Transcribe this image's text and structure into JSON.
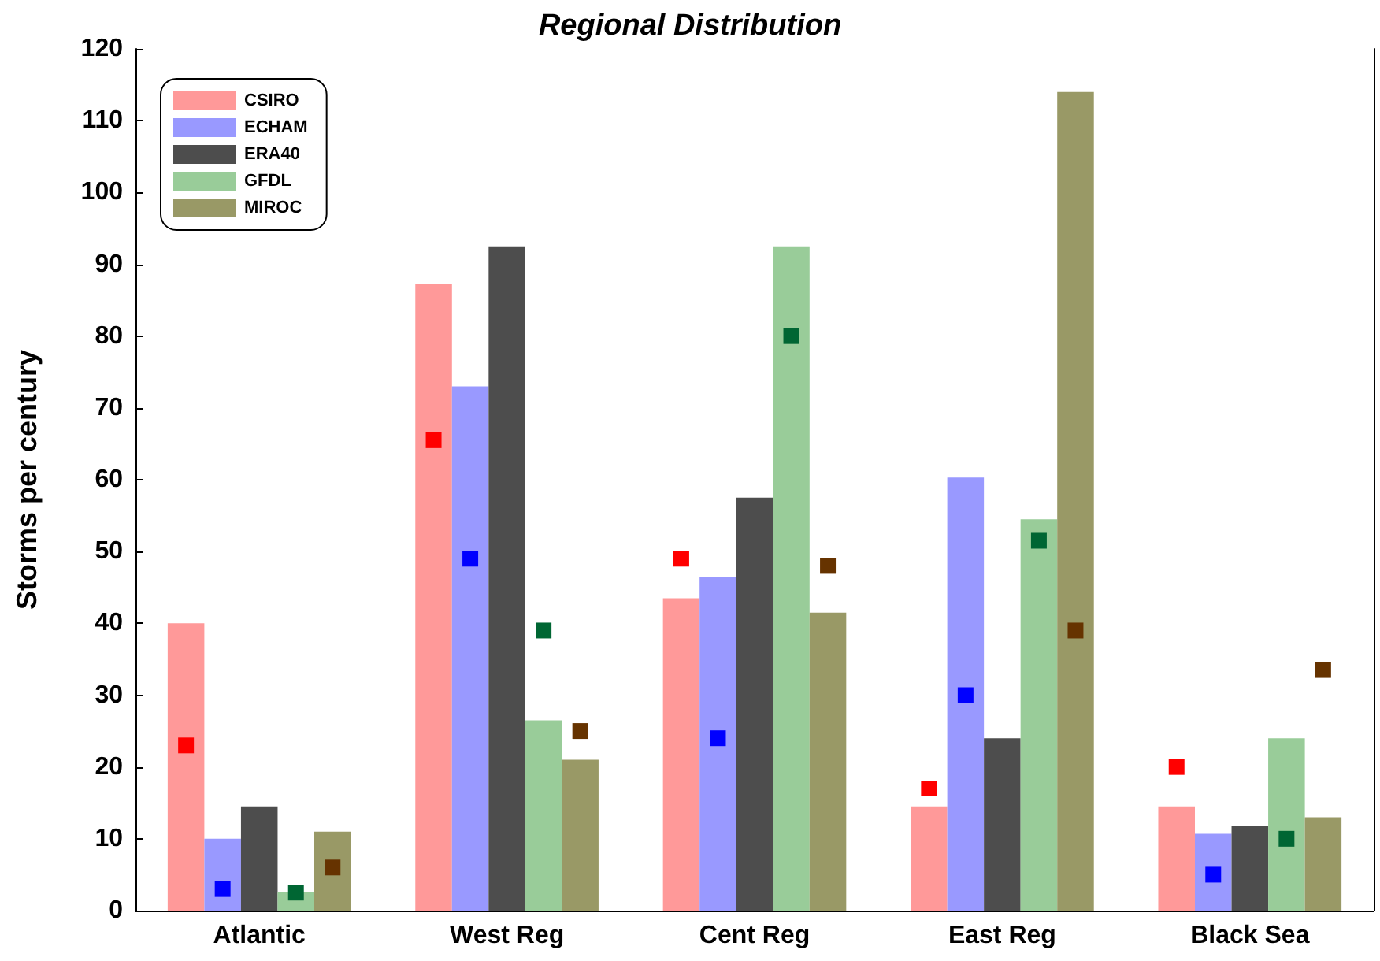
{
  "chart_data": {
    "type": "bar",
    "title": "Regional Distribution",
    "ylabel": "Storms per century",
    "categories": [
      "Atlantic",
      "West Reg",
      "Cent Reg",
      "East Reg",
      "Black Sea"
    ],
    "series": [
      {
        "name": "CSIRO",
        "color": "#ff9999",
        "values": [
          40,
          87.2,
          43.5,
          14.5,
          14.5
        ]
      },
      {
        "type": "scatter",
        "color": "#ff0000",
        "values": [
          23,
          65.5,
          49,
          17,
          20
        ]
      },
      {
        "name": "ECHAM",
        "color": "#9999ff",
        "values": [
          10,
          73,
          46.5,
          60.3,
          10.7
        ]
      },
      {
        "type": "scatter",
        "color": "#0000ff",
        "values": [
          3,
          49,
          24,
          30,
          5
        ]
      },
      {
        "name": "ERA40",
        "color": "#4d4d4d",
        "values": [
          14.5,
          92.5,
          57.5,
          24,
          11.8
        ]
      },
      {
        "name": "GFDL",
        "color": "#99cc99",
        "values": [
          2.6,
          26.5,
          92.5,
          54.5,
          24
        ]
      },
      {
        "type": "scatter",
        "color": "#006633",
        "values": [
          2.5,
          39,
          80,
          51.5,
          10
        ]
      },
      {
        "name": "MIROC",
        "color": "#999966",
        "values": [
          11,
          21,
          41.5,
          114,
          13
        ]
      },
      {
        "type": "scatter",
        "color": "#663300",
        "values": [
          6,
          25,
          48,
          39,
          33.5
        ]
      }
    ],
    "ylim": [
      0,
      120
    ],
    "yticks": [
      0,
      10,
      20,
      30,
      40,
      50,
      60,
      70,
      80,
      90,
      100,
      110,
      120
    ],
    "grid": false,
    "legend": "top left",
    "marker": "square"
  }
}
